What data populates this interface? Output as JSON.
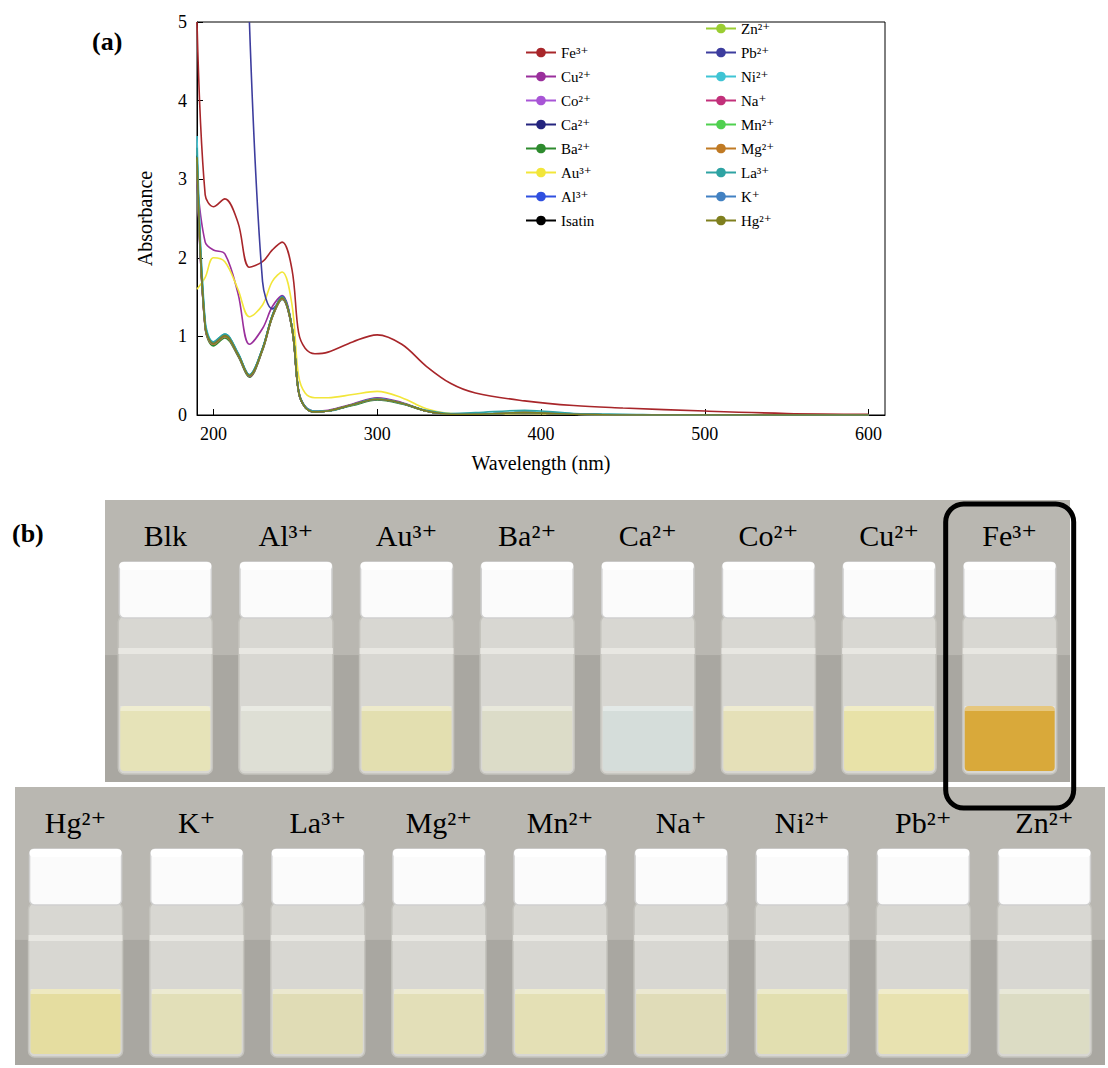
{
  "chart_data": {
    "type": "line",
    "panel_label": "(a)",
    "x_label": "Wavelength (nm)",
    "y_label": "Absorbance",
    "xlim": [
      190,
      610
    ],
    "xticks": [
      200,
      300,
      400,
      500,
      600
    ],
    "ylim": [
      0,
      5
    ],
    "yticks": [
      0,
      1,
      2,
      3,
      4,
      5
    ],
    "legend": "upper right",
    "x": [
      190,
      195,
      200,
      207,
      215,
      222,
      230,
      236,
      242,
      248,
      252,
      256,
      262,
      270,
      285,
      300,
      315,
      330,
      345,
      360,
      390,
      420,
      450,
      500,
      550,
      600
    ],
    "series": [
      {
        "name": "Fe³⁺",
        "color": "#a8262a",
        "values": [
          5,
          2.8,
          2.65,
          2.75,
          2.45,
          1.88,
          1.95,
          2.1,
          2.2,
          1.85,
          1.05,
          0.85,
          0.78,
          0.8,
          0.93,
          1.02,
          0.9,
          0.62,
          0.4,
          0.28,
          0.18,
          0.12,
          0.09,
          0.05,
          0.02,
          0.01
        ]
      },
      {
        "name": "Cu²⁺",
        "color": "#9a2f9c",
        "values": [
          3.0,
          2.2,
          2.1,
          2.05,
          1.55,
          0.9,
          1.1,
          1.38,
          1.52,
          1.12,
          0.32,
          0.11,
          0.05,
          0.06,
          0.14,
          0.22,
          0.16,
          0.05,
          0.01,
          0.01,
          0.03,
          0.01,
          0,
          0,
          0,
          0
        ]
      },
      {
        "name": "Co²⁺",
        "color": "#a855d6",
        "values": [
          3.2,
          1.1,
          0.9,
          1.0,
          0.76,
          0.49,
          0.83,
          1.25,
          1.48,
          1.1,
          0.29,
          0.1,
          0.04,
          0.05,
          0.13,
          0.2,
          0.15,
          0.05,
          0.01,
          0.01,
          0.03,
          0.01,
          0,
          0,
          0,
          0
        ]
      },
      {
        "name": "Ca²⁺",
        "color": "#24247e",
        "values": [
          3.1,
          1.12,
          0.91,
          1.01,
          0.77,
          0.5,
          0.84,
          1.26,
          1.49,
          1.1,
          0.3,
          0.1,
          0.04,
          0.05,
          0.13,
          0.21,
          0.15,
          0.05,
          0.01,
          0.01,
          0.03,
          0.01,
          0,
          0,
          0,
          0
        ]
      },
      {
        "name": "Ba²⁺",
        "color": "#2e8b2e",
        "values": [
          3.3,
          1.1,
          0.88,
          0.98,
          0.75,
          0.48,
          0.82,
          1.24,
          1.47,
          1.09,
          0.29,
          0.1,
          0.04,
          0.05,
          0.12,
          0.19,
          0.14,
          0.05,
          0.01,
          0.01,
          0.03,
          0.01,
          0,
          0,
          0,
          0
        ]
      },
      {
        "name": "Au³⁺",
        "color": "#f2e63a",
        "values": [
          1.6,
          1.75,
          2.0,
          1.95,
          1.6,
          1.25,
          1.4,
          1.7,
          1.82,
          1.4,
          0.5,
          0.28,
          0.22,
          0.22,
          0.26,
          0.3,
          0.22,
          0.08,
          0.02,
          0.01,
          0.02,
          0.01,
          0,
          0,
          0,
          0
        ]
      },
      {
        "name": "Al³⁺",
        "color": "#2f4fe0",
        "values": [
          3.2,
          1.14,
          0.92,
          1.02,
          0.78,
          0.51,
          0.85,
          1.27,
          1.51,
          1.12,
          0.3,
          0.1,
          0.04,
          0.05,
          0.13,
          0.2,
          0.15,
          0.05,
          0.01,
          0.01,
          0.03,
          0.01,
          0,
          0,
          0,
          0
        ]
      },
      {
        "name": "Isatin",
        "color": "#000000",
        "values": [
          3.3,
          1.15,
          0.92,
          1.02,
          0.78,
          0.5,
          0.84,
          1.26,
          1.5,
          1.12,
          0.3,
          0.1,
          0.04,
          0.05,
          0.13,
          0.2,
          0.15,
          0.05,
          0.01,
          0.01,
          0.03,
          0.01,
          0,
          0,
          0,
          0
        ]
      },
      {
        "name": "Zn²⁺",
        "color": "#9acd32",
        "values": [
          3.25,
          1.13,
          0.9,
          1.0,
          0.77,
          0.5,
          0.84,
          1.25,
          1.49,
          1.11,
          0.3,
          0.1,
          0.04,
          0.05,
          0.13,
          0.2,
          0.15,
          0.05,
          0.01,
          0.01,
          0.03,
          0.01,
          0,
          0,
          0,
          0
        ]
      },
      {
        "name": "Pb²⁺",
        "color": "#3d3d9e",
        "values": [
          null,
          null,
          null,
          null,
          null,
          5,
          1.7,
          1.35,
          1.48,
          1.1,
          0.3,
          0.1,
          0.04,
          0.05,
          0.13,
          0.2,
          0.15,
          0.05,
          0.01,
          0.01,
          0.03,
          0.01,
          0,
          0,
          0,
          0
        ]
      },
      {
        "name": "Ni²⁺",
        "color": "#3fc4d4",
        "values": [
          3.55,
          1.2,
          0.93,
          1.03,
          0.79,
          0.51,
          0.85,
          1.27,
          1.5,
          1.12,
          0.3,
          0.1,
          0.04,
          0.05,
          0.13,
          0.21,
          0.15,
          0.05,
          0.01,
          0.01,
          0.04,
          0.01,
          0,
          0,
          0,
          0
        ]
      },
      {
        "name": "Na⁺",
        "color": "#c2307a",
        "values": [
          3.15,
          1.1,
          0.9,
          1.0,
          0.76,
          0.49,
          0.83,
          1.25,
          1.48,
          1.1,
          0.29,
          0.1,
          0.04,
          0.05,
          0.13,
          0.2,
          0.15,
          0.05,
          0.01,
          0.01,
          0.03,
          0.01,
          0,
          0,
          0,
          0
        ]
      },
      {
        "name": "Mn²⁺",
        "color": "#4fd04f",
        "values": [
          3.2,
          1.12,
          0.91,
          1.01,
          0.77,
          0.5,
          0.84,
          1.26,
          1.49,
          1.11,
          0.3,
          0.1,
          0.04,
          0.05,
          0.13,
          0.2,
          0.15,
          0.05,
          0.01,
          0.01,
          0.03,
          0.01,
          0,
          0,
          0,
          0
        ]
      },
      {
        "name": "Mg²⁺",
        "color": "#c07a24",
        "values": [
          3.18,
          1.11,
          0.9,
          1.0,
          0.77,
          0.5,
          0.83,
          1.25,
          1.48,
          1.1,
          0.3,
          0.1,
          0.04,
          0.05,
          0.13,
          0.2,
          0.15,
          0.05,
          0.01,
          0.01,
          0.03,
          0.01,
          0,
          0,
          0,
          0
        ]
      },
      {
        "name": "La³⁺",
        "color": "#2ea3a3",
        "values": [
          3.4,
          1.16,
          0.93,
          1.03,
          0.79,
          0.51,
          0.85,
          1.27,
          1.5,
          1.12,
          0.31,
          0.11,
          0.05,
          0.05,
          0.13,
          0.2,
          0.15,
          0.06,
          0.02,
          0.03,
          0.06,
          0.02,
          0.01,
          0,
          0,
          0
        ]
      },
      {
        "name": "K⁺",
        "color": "#4281c2",
        "values": [
          3.22,
          1.12,
          0.91,
          1.01,
          0.77,
          0.5,
          0.84,
          1.26,
          1.49,
          1.11,
          0.3,
          0.1,
          0.04,
          0.05,
          0.13,
          0.2,
          0.15,
          0.05,
          0.01,
          0.01,
          0.03,
          0.01,
          0,
          0,
          0,
          0
        ]
      },
      {
        "name": "Hg²⁺",
        "color": "#7f7f1e",
        "values": [
          3.28,
          1.13,
          0.91,
          1.01,
          0.77,
          0.5,
          0.84,
          1.26,
          1.49,
          1.11,
          0.3,
          0.1,
          0.04,
          0.05,
          0.13,
          0.2,
          0.15,
          0.05,
          0.01,
          0.01,
          0.03,
          0.01,
          0,
          0,
          0,
          0
        ]
      }
    ]
  },
  "photo": {
    "panel_label": "(b)",
    "highlighted": "Fe³⁺",
    "rows": [
      [
        {
          "label": "Blk",
          "color": "#e6e3b8"
        },
        {
          "label": "Al³⁺",
          "color": "#dedfd5"
        },
        {
          "label": "Au³⁺",
          "color": "#e3dfb0"
        },
        {
          "label": "Ba²⁺",
          "color": "#dcdcc8"
        },
        {
          "label": "Ca²⁺",
          "color": "#d5ddda"
        },
        {
          "label": "Co²⁺",
          "color": "#e5e0b8"
        },
        {
          "label": "Cu²⁺",
          "color": "#e8e2a8"
        },
        {
          "label": "Fe³⁺",
          "color": "#d9a93a"
        }
      ],
      [
        {
          "label": "Hg²⁺",
          "color": "#e5dda0"
        },
        {
          "label": "K⁺",
          "color": "#e2dfb8"
        },
        {
          "label": "La³⁺",
          "color": "#e0dcb5"
        },
        {
          "label": "Mg²⁺",
          "color": "#e3dfb8"
        },
        {
          "label": "Mn²⁺",
          "color": "#e4e0b5"
        },
        {
          "label": "Na⁺",
          "color": "#e0dcb8"
        },
        {
          "label": "Ni²⁺",
          "color": "#e2dfb0"
        },
        {
          "label": "Pb²⁺",
          "color": "#e8e2b0"
        },
        {
          "label": "Zn²⁺",
          "color": "#dcdcc4"
        }
      ]
    ]
  }
}
